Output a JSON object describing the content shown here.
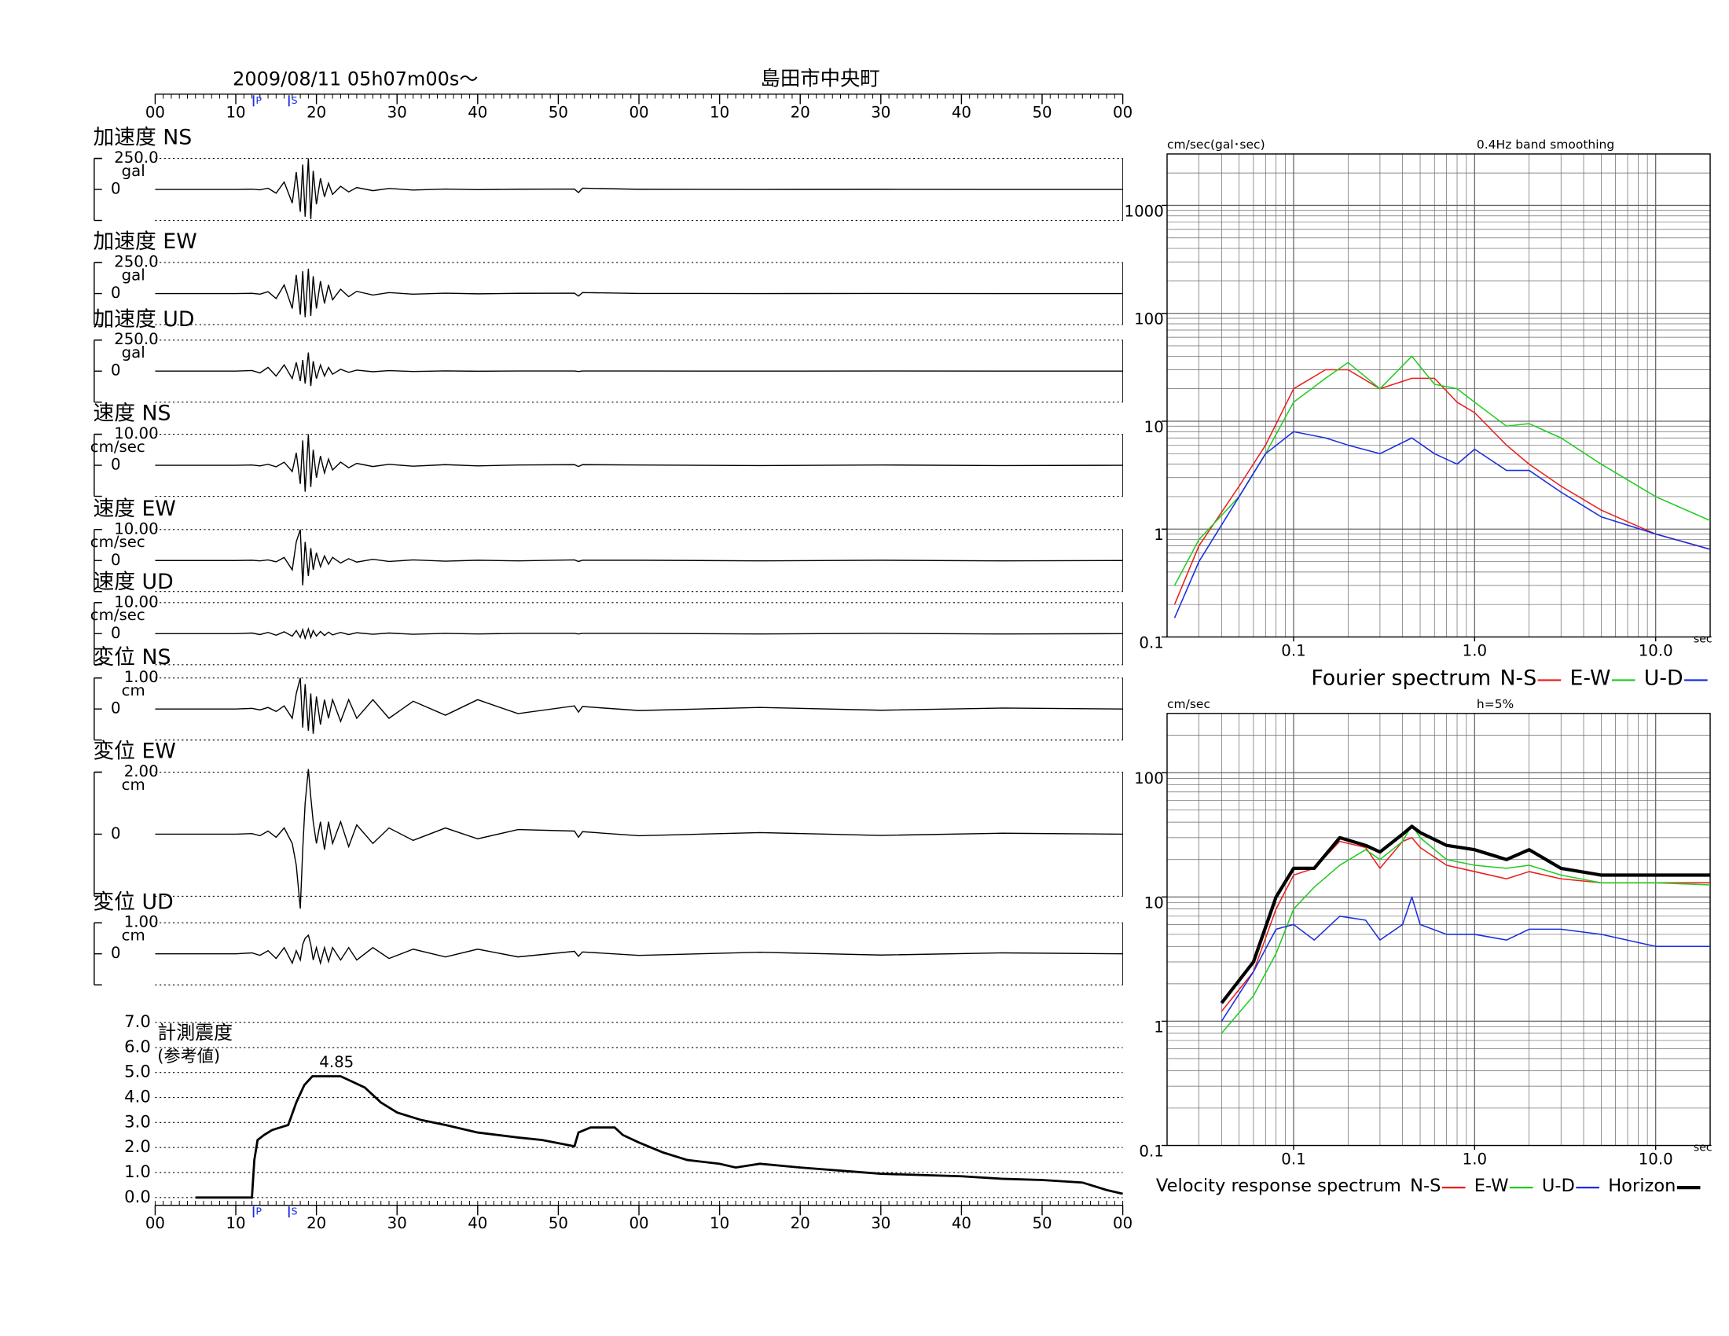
{
  "chart_data": [
    {
      "type": "waveform",
      "title": "2009/08/11  05h07m00s～",
      "subtitle": "島田市中央町",
      "xlim": [
        0,
        120
      ],
      "xticks": [
        {
          "value": 0,
          "label": "00"
        },
        10,
        20,
        30,
        40,
        50,
        {
          "value": 60,
          "label": "00"
        },
        {
          "value": 70,
          "label": "10"
        },
        {
          "value": 80,
          "label": "20"
        },
        {
          "value": 90,
          "label": "30"
        },
        {
          "value": 100,
          "label": "40"
        },
        {
          "value": 110,
          "label": "50"
        },
        {
          "value": 120,
          "label": "00"
        }
      ],
      "phase_markers": [
        {
          "label": "P",
          "x": 12.2
        },
        {
          "label": "S",
          "x": 16.6
        }
      ],
      "x": [
        0,
        10,
        12,
        13,
        14,
        15,
        16,
        17,
        17.5,
        18,
        18.3,
        18.6,
        19,
        19.3,
        19.6,
        20,
        20.5,
        21,
        21.5,
        22,
        23,
        24,
        25,
        27,
        29,
        32,
        36,
        40,
        45,
        52,
        52.5,
        53,
        60,
        75,
        90,
        105,
        120
      ],
      "panels": [
        {
          "label": "加速度 NS",
          "unit": "gal",
          "ylim": [
            -250,
            250
          ],
          "yticks": [
            {
              "value": 250,
              "label": "250.0"
            },
            0
          ],
          "values": [
            0,
            0,
            2,
            -3,
            10,
            -30,
            60,
            -110,
            140,
            -180,
            200,
            -220,
            250,
            -240,
            150,
            -120,
            90,
            -60,
            50,
            -40,
            25,
            -20,
            15,
            -10,
            8,
            -5,
            3,
            -2,
            2,
            3,
            -25,
            10,
            1,
            0,
            1,
            0,
            0
          ]
        },
        {
          "label": "加速度 EW",
          "unit": "gal",
          "ylim": [
            -250,
            250
          ],
          "yticks": [
            {
              "value": 250,
              "label": "250.0"
            },
            0
          ],
          "values": [
            0,
            0,
            2,
            -5,
            15,
            -40,
            70,
            -120,
            150,
            -170,
            180,
            -190,
            200,
            -180,
            140,
            -120,
            100,
            -80,
            70,
            -50,
            35,
            -25,
            18,
            -12,
            8,
            -5,
            3,
            -2,
            2,
            3,
            -20,
            8,
            1,
            0,
            1,
            0,
            0
          ]
        },
        {
          "label": "加速度 UD",
          "unit": "gal",
          "ylim": [
            -250,
            250
          ],
          "yticks": [
            {
              "value": 250,
              "label": "250.0"
            },
            0
          ],
          "values": [
            0,
            0,
            5,
            -15,
            30,
            -40,
            50,
            -60,
            70,
            -80,
            90,
            -100,
            150,
            -120,
            80,
            -60,
            50,
            -40,
            30,
            -25,
            15,
            -10,
            8,
            -5,
            4,
            -3,
            2,
            -1,
            1,
            1,
            -3,
            1,
            1,
            0,
            1,
            0,
            0
          ]
        },
        {
          "label": "速度 NS",
          "unit": "cm/sec",
          "ylim": [
            -10,
            10
          ],
          "yticks": [
            {
              "value": 10,
              "label": "10.00"
            },
            0
          ],
          "values": [
            0,
            0,
            0.1,
            -0.2,
            0.3,
            -0.5,
            1,
            -2,
            4,
            -6,
            8,
            -8.5,
            10,
            -7,
            5,
            -4,
            3,
            -2.5,
            2,
            -1.5,
            1,
            -0.8,
            0.6,
            -0.4,
            0.3,
            -0.3,
            0.2,
            -0.2,
            0.1,
            0.2,
            -0.4,
            0.2,
            0.1,
            -0.1,
            0.1,
            -0.1,
            0
          ]
        },
        {
          "label": "速度 EW",
          "unit": "cm/sec",
          "ylim": [
            -10,
            10
          ],
          "yticks": [
            {
              "value": 10,
              "label": "10.00"
            },
            0
          ],
          "values": [
            0,
            0,
            0.1,
            -0.1,
            0.2,
            -0.4,
            1,
            -3,
            6,
            10,
            -8,
            6,
            -5,
            4,
            -3,
            2.5,
            -2,
            1.5,
            -1.2,
            1,
            -0.8,
            0.6,
            -0.5,
            0.4,
            -0.3,
            0.2,
            -0.2,
            0.1,
            -0.1,
            0.2,
            -0.3,
            0.1,
            0.1,
            -0.1,
            0.1,
            -0.1,
            0
          ]
        },
        {
          "label": "速度 UD",
          "unit": "cm/sec",
          "ylim": [
            -10,
            10
          ],
          "yticks": [
            {
              "value": 10,
              "label": "10.00"
            },
            0
          ],
          "values": [
            0,
            0,
            0.2,
            -0.3,
            0.4,
            -0.5,
            0.6,
            -0.8,
            1,
            -1.2,
            1.3,
            -1.5,
            1.5,
            -1.2,
            1,
            -0.8,
            0.7,
            -0.6,
            0.5,
            -0.4,
            0.4,
            -0.3,
            0.3,
            -0.2,
            0.2,
            -0.2,
            0.1,
            -0.1,
            0.1,
            0.1,
            -0.1,
            0.1,
            0.1,
            -0.1,
            0.1,
            -0.1,
            0
          ]
        },
        {
          "label": "変位 NS",
          "unit": "cm",
          "ylim": [
            -1,
            1
          ],
          "yticks": [
            {
              "value": 1,
              "label": "1.00"
            },
            0
          ],
          "values": [
            0,
            0,
            0.02,
            -0.03,
            0.05,
            -0.08,
            0.1,
            -0.3,
            0.5,
            1,
            -0.6,
            0.8,
            -0.7,
            0.5,
            -0.8,
            0.4,
            -0.5,
            0.3,
            -0.3,
            0.3,
            -0.4,
            0.3,
            -0.3,
            0.3,
            -0.3,
            0.25,
            -0.2,
            0.3,
            -0.15,
            0.1,
            -0.1,
            0.08,
            -0.05,
            0.05,
            -0.04,
            0.03,
            0
          ]
        },
        {
          "label": "変位 EW",
          "unit": "cm",
          "ylim": [
            -2,
            2
          ],
          "yticks": [
            {
              "value": 2,
              "label": "2.00"
            },
            0
          ],
          "values": [
            0,
            0,
            0.02,
            -0.05,
            0.1,
            -0.1,
            0.2,
            -0.3,
            -1,
            -2.4,
            -0.5,
            1,
            2.1,
            1.2,
            0.4,
            -0.3,
            0.4,
            -0.5,
            0.4,
            -0.3,
            0.4,
            -0.4,
            0.3,
            -0.3,
            0.2,
            -0.2,
            0.2,
            -0.15,
            0.15,
            0.1,
            -0.1,
            0.08,
            -0.05,
            0.05,
            -0.04,
            0.03,
            0
          ]
        },
        {
          "label": "変位 UD",
          "unit": "cm",
          "ylim": [
            -1,
            1
          ],
          "yticks": [
            {
              "value": 1,
              "label": "1.00"
            },
            0
          ],
          "values": [
            0,
            0,
            0.03,
            -0.05,
            0.1,
            -0.15,
            0.2,
            -0.3,
            0.1,
            -0.2,
            0.3,
            0.5,
            0.6,
            0.3,
            -0.2,
            0.2,
            -0.3,
            0.2,
            -0.25,
            0.2,
            -0.2,
            0.2,
            -0.2,
            0.2,
            -0.15,
            0.15,
            -0.1,
            0.15,
            -0.1,
            0.08,
            -0.08,
            0.06,
            -0.05,
            0.05,
            -0.04,
            0.03,
            0
          ]
        }
      ]
    },
    {
      "type": "intensity",
      "title": "計測震度",
      "subtitle": "(参考値)",
      "xlim": [
        0,
        120
      ],
      "xticks": [
        {
          "value": 0,
          "label": "00"
        },
        10,
        20,
        30,
        40,
        50,
        {
          "value": 60,
          "label": "00"
        },
        {
          "value": 70,
          "label": "10"
        },
        {
          "value": 80,
          "label": "20"
        },
        {
          "value": 90,
          "label": "30"
        },
        {
          "value": 100,
          "label": "40"
        },
        {
          "value": 110,
          "label": "50"
        },
        {
          "value": 120,
          "label": "00"
        }
      ],
      "phase_markers": [
        {
          "label": "P",
          "x": 12.2
        },
        {
          "label": "S",
          "x": 16.6
        }
      ],
      "ylim": [
        0,
        7
      ],
      "yticks": [
        {
          "value": 0,
          "label": "0.0"
        },
        {
          "value": 1,
          "label": "1.0"
        },
        {
          "value": 2,
          "label": "2.0"
        },
        {
          "value": 3,
          "label": "3.0"
        },
        {
          "value": 4,
          "label": "4.0"
        },
        {
          "value": 5,
          "label": "5.0"
        },
        {
          "value": 6,
          "label": "6.0"
        },
        {
          "value": 7,
          "label": "7.0"
        }
      ],
      "grid": true,
      "x": [
        5,
        12,
        12.3,
        12.7,
        13.5,
        14.5,
        15.5,
        16.5,
        17.5,
        18.5,
        19.5,
        20,
        23,
        24,
        26,
        28,
        30,
        33,
        36,
        40,
        45,
        48,
        52,
        52.5,
        54,
        57,
        58,
        60,
        63,
        66,
        70,
        72,
        75,
        80,
        90,
        100,
        105,
        110,
        115,
        118,
        120
      ],
      "values": [
        0,
        0,
        1.5,
        2.3,
        2.5,
        2.7,
        2.8,
        2.9,
        3.8,
        4.5,
        4.85,
        4.85,
        4.85,
        4.7,
        4.4,
        3.8,
        3.4,
        3.1,
        2.9,
        2.6,
        2.4,
        2.3,
        2.05,
        2.6,
        2.8,
        2.8,
        2.5,
        2.2,
        1.8,
        1.5,
        1.35,
        1.2,
        1.35,
        1.2,
        0.95,
        0.85,
        0.75,
        0.7,
        0.6,
        0.3,
        0.15
      ],
      "peak": {
        "x": 22.5,
        "value": 4.85
      }
    },
    {
      "type": "log-line",
      "ylabel": "cm/sec(gal･sec)",
      "note": "0.4Hz band smoothing",
      "legend_title": "Fourier spectrum",
      "xlabel": "sec",
      "log_x": true,
      "log_y": true,
      "grid": true,
      "xlim": [
        0.02,
        20
      ],
      "ylim": [
        0.1,
        3000
      ],
      "xticks": [
        0.1,
        {
          "value": 1,
          "label": "1.0"
        },
        {
          "value": 10,
          "label": "10.0"
        }
      ],
      "yticks": [
        0.1,
        1,
        10,
        100,
        1000
      ],
      "x": [
        0.022,
        0.03,
        0.05,
        0.07,
        0.1,
        0.15,
        0.2,
        0.3,
        0.45,
        0.6,
        0.8,
        1,
        1.5,
        2,
        3,
        5,
        10,
        20
      ],
      "series": [
        {
          "name": "N-S",
          "color": "#e8201c",
          "values": [
            0.2,
            0.7,
            2.5,
            6,
            20,
            30,
            30,
            20,
            25,
            25,
            15,
            12,
            6,
            4,
            2.5,
            1.5,
            0.9,
            0.65
          ]
        },
        {
          "name": "E-W",
          "color": "#22cc22",
          "values": [
            0.3,
            0.8,
            2,
            5,
            15,
            25,
            35,
            20,
            40,
            22,
            20,
            15,
            9,
            9.5,
            7,
            4,
            2,
            1.2
          ]
        },
        {
          "name": "U-D",
          "color": "#1a2ee0",
          "values": [
            0.15,
            0.5,
            2,
            5,
            8,
            7,
            6,
            5,
            7,
            5,
            4,
            5.5,
            3.5,
            3.5,
            2.2,
            1.3,
            0.9,
            0.65
          ]
        }
      ]
    },
    {
      "type": "log-line",
      "ylabel": "cm/sec",
      "note": "h=5%",
      "legend_title": "Velocity response spectrum",
      "xlabel": "sec",
      "log_x": true,
      "log_y": true,
      "grid": true,
      "xlim": [
        0.02,
        20
      ],
      "ylim": [
        0.1,
        300
      ],
      "xticks": [
        0.1,
        {
          "value": 1,
          "label": "1.0"
        },
        {
          "value": 10,
          "label": "10.0"
        }
      ],
      "yticks": [
        0.1,
        1,
        10,
        100
      ],
      "x": [
        0.04,
        0.06,
        0.08,
        0.1,
        0.13,
        0.18,
        0.25,
        0.3,
        0.4,
        0.45,
        0.5,
        0.7,
        1,
        1.5,
        2,
        3,
        5,
        10,
        20
      ],
      "series": [
        {
          "name": "N-S",
          "color": "#e8201c",
          "values": [
            1.2,
            2.5,
            8,
            15,
            17,
            28,
            25,
            17,
            28,
            30,
            25,
            18,
            16,
            14,
            16,
            14,
            13,
            13,
            13
          ]
        },
        {
          "name": "E-W",
          "color": "#22cc22",
          "values": [
            0.8,
            1.6,
            3.5,
            8,
            12,
            18,
            24,
            20,
            28,
            38,
            30,
            20,
            18,
            17,
            18,
            15,
            13,
            13,
            12.5
          ]
        },
        {
          "name": "U-D",
          "color": "#1a2ee0",
          "values": [
            1,
            2.5,
            5.5,
            6,
            4.5,
            7,
            6.5,
            4.5,
            6,
            10,
            6,
            5,
            5,
            4.5,
            5.5,
            5.5,
            5,
            4,
            4
          ]
        },
        {
          "name": "Horizon",
          "color": "#000000",
          "line_width": 3,
          "values": [
            1.4,
            3,
            10,
            17,
            17,
            30,
            26,
            23,
            32,
            37,
            33,
            26,
            24,
            20,
            24,
            17,
            15,
            15,
            15
          ]
        }
      ]
    }
  ]
}
